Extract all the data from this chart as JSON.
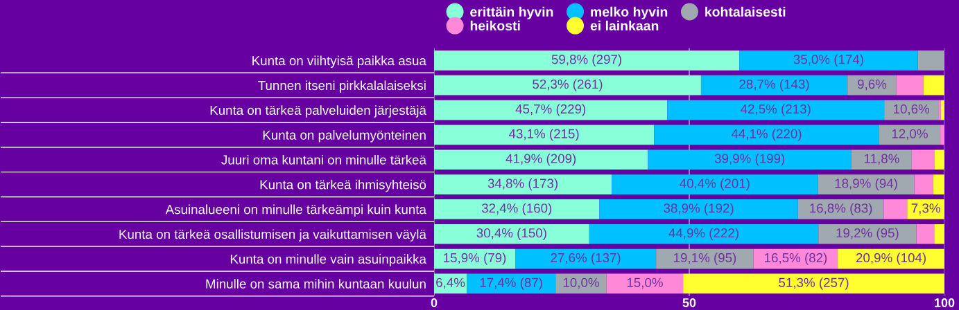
{
  "chart_data": {
    "type": "bar",
    "orientation": "horizontal",
    "stacked": true,
    "categories": [
      "Kunta on viihtyisä paikka asua",
      "Tunnen itseni pirkkalalaiseksi",
      "Kunta on tärkeä palveluiden järjestäjä",
      "Kunta on palvelumyönteinen",
      "Juuri oma kuntani on minulle tärkeä",
      "Kunta on tärkeä ihmisyhteisö",
      "Asuinalueeni on minulle tärkeämpi kuin kunta",
      "Kunta on tärkeä osallistumisen ja vaikuttamisen väylä",
      "Kunta on minulle vain asuinpaikka",
      "Minulle on sama mihin kuntaan kuulun"
    ],
    "series": [
      {
        "name": "erittäin hyvin",
        "color": "#88ffd8",
        "values": [
          59.8,
          52.3,
          45.7,
          43.1,
          41.9,
          34.8,
          32.4,
          30.4,
          15.9,
          6.4
        ],
        "value_labels": [
          "59,8% (297)",
          "52,3% (261)",
          "45,7% (229)",
          "43,1% (215)",
          "41,9% (209)",
          "34,8% (173)",
          "32,4% (160)",
          "30,4% (150)",
          "15,9% (79)",
          "6,4%"
        ]
      },
      {
        "name": "melko hyvin",
        "color": "#00c0ff",
        "values": [
          35.0,
          28.7,
          42.5,
          44.1,
          39.9,
          40.4,
          38.9,
          44.9,
          27.6,
          17.4
        ],
        "value_labels": [
          "35,0% (174)",
          "28,7% (143)",
          "42,5% (213)",
          "44,1% (220)",
          "39,9% (199)",
          "40,4% (201)",
          "38,9% (192)",
          "44,9% (222)",
          "27,6% (137)",
          "17,4% (87)"
        ]
      },
      {
        "name": "kohtalaisesti",
        "color": "#a0a8b0",
        "values": [
          5.2,
          9.6,
          10.6,
          12.0,
          11.8,
          18.9,
          16.8,
          19.2,
          19.1,
          10.0
        ],
        "value_labels": [
          null,
          "9,6%",
          "10,6%",
          "12,0%",
          "11,8%",
          "18,9% (94)",
          "16,8% (83)",
          "19,2% (95)",
          "19,1% (95)",
          "10,0%"
        ]
      },
      {
        "name": "heikosti",
        "color": "#ff88d8",
        "values": [
          0,
          5.3,
          0.5,
          0.8,
          4.5,
          3.7,
          4.6,
          3.5,
          16.5,
          15.0
        ],
        "value_labels": [
          null,
          null,
          null,
          null,
          null,
          null,
          null,
          null,
          "16,5% (82)",
          "15,0%"
        ]
      },
      {
        "name": "ei lainkaan",
        "color": "#ffff30",
        "values": [
          0,
          4.1,
          0.7,
          0,
          1.9,
          2.2,
          7.3,
          2.0,
          20.9,
          51.3
        ],
        "value_labels": [
          null,
          null,
          null,
          null,
          null,
          null,
          "7,3%",
          null,
          "20,9% (104)",
          "51,3% (257)"
        ]
      }
    ],
    "xlim": [
      0,
      100
    ],
    "xticks": [
      0,
      50,
      100
    ],
    "grid": "x",
    "legend": "top"
  }
}
